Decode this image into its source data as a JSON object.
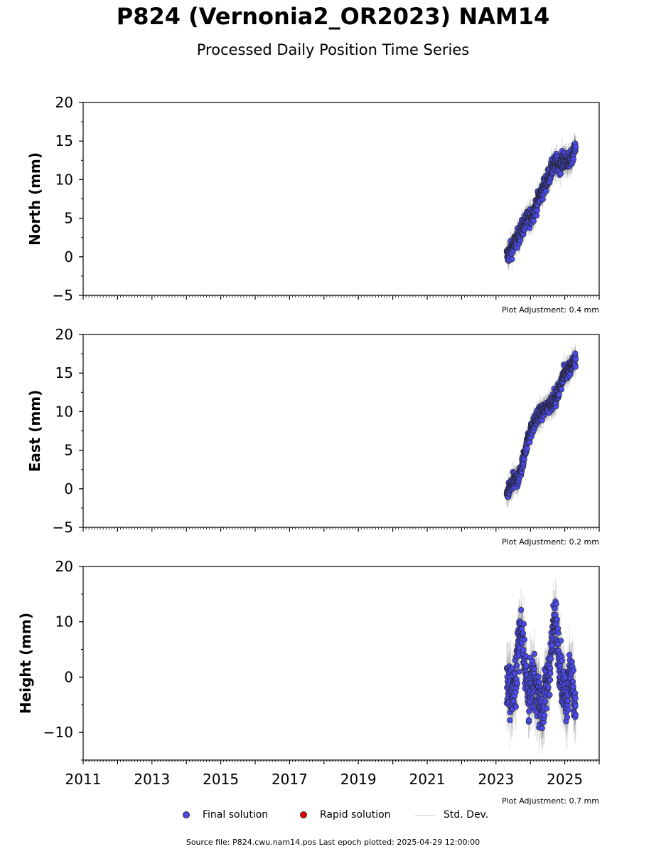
{
  "title": "P824 (Vernonia2_OR2023) NAM14",
  "subtitle": "Processed Daily Position Time Series",
  "legend": {
    "final_label": "Final solution",
    "rapid_label": "Rapid solution",
    "std_label": "Std. Dev.",
    "final_color": "#4a4ae8",
    "rapid_color": "#e00000",
    "std_color": "#cccccc"
  },
  "footer": "Source file: P824.cwu.nam14.pos  Last epoch plotted: 2025-04-29 12:00:00",
  "chart_data": [
    {
      "type": "scatter",
      "ylabel": "North (mm)",
      "xlim": [
        2011,
        2026
      ],
      "ylim": [
        -5,
        20
      ],
      "yticks": [
        -5,
        0,
        5,
        10,
        15,
        20
      ],
      "adjustment": "Plot Adjustment: 0.4 mm",
      "series": [
        {
          "x": [
            2023.35,
            2023.45,
            2023.55,
            2023.65,
            2023.75,
            2023.85,
            2023.95,
            2024.05,
            2024.15,
            2024.25,
            2024.35,
            2024.45,
            2024.55,
            2024.65,
            2024.75,
            2024.85,
            2024.95,
            2025.05,
            2025.15,
            2025.25,
            2025.32
          ],
          "y": [
            0.2,
            1.0,
            1.8,
            2.6,
            3.6,
            4.4,
            5.0,
            5.4,
            6.4,
            7.6,
            8.6,
            9.6,
            10.6,
            11.6,
            12.2,
            12.0,
            12.4,
            12.6,
            12.2,
            13.4,
            14.8
          ]
        }
      ]
    },
    {
      "type": "scatter",
      "ylabel": "East (mm)",
      "xlim": [
        2011,
        2026
      ],
      "ylim": [
        -5,
        20
      ],
      "yticks": [
        -5,
        0,
        5,
        10,
        15,
        20
      ],
      "adjustment": "Plot Adjustment: 0.2 mm",
      "series": [
        {
          "x": [
            2023.35,
            2023.45,
            2023.55,
            2023.65,
            2023.75,
            2023.85,
            2023.95,
            2024.05,
            2024.15,
            2024.25,
            2024.35,
            2024.45,
            2024.55,
            2024.65,
            2024.75,
            2024.85,
            2024.95,
            2025.05,
            2025.15,
            2025.25,
            2025.32
          ],
          "y": [
            -0.6,
            0.6,
            1.0,
            1.4,
            2.8,
            5.0,
            6.8,
            7.8,
            8.8,
            9.6,
            10.0,
            10.4,
            11.0,
            11.4,
            11.8,
            13.0,
            14.6,
            15.2,
            15.8,
            16.4,
            16.8
          ]
        }
      ]
    },
    {
      "type": "scatter",
      "ylabel": "Height (mm)",
      "xlim": [
        2011,
        2026
      ],
      "ylim": [
        -15,
        20
      ],
      "yticks": [
        -10,
        0,
        10,
        20
      ],
      "xticks": [
        2011,
        2013,
        2015,
        2017,
        2019,
        2021,
        2023,
        2025
      ],
      "adjustment": "Plot Adjustment: 0.7 mm",
      "series": [
        {
          "x": [
            2023.35,
            2023.45,
            2023.55,
            2023.65,
            2023.75,
            2023.85,
            2023.95,
            2024.05,
            2024.15,
            2024.25,
            2024.35,
            2024.45,
            2024.55,
            2024.65,
            2024.75,
            2024.85,
            2024.95,
            2025.05,
            2025.15,
            2025.25,
            2025.32
          ],
          "y": [
            -1.0,
            -3.0,
            -2.0,
            6.0,
            9.0,
            2.0,
            -4.0,
            -1.0,
            -2.0,
            -3.0,
            -6.0,
            -2.0,
            1.0,
            8.0,
            10.0,
            3.0,
            -2.0,
            -4.0,
            2.0,
            -3.0,
            -6.0
          ]
        }
      ]
    }
  ]
}
